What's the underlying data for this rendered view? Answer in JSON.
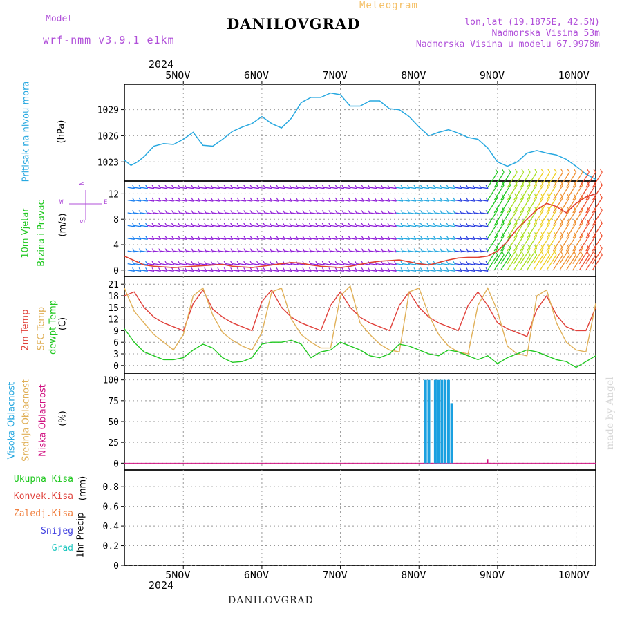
{
  "header": {
    "model_label": "Model",
    "model_name": "wrf-nmm_v3.9.1 e1km",
    "station": "DANILOVGRAD",
    "meteogram": "Meteogram",
    "lonlat": "lon,lat (19.1875E, 42.5N)",
    "elevation": "Nadmorska Visina 53m",
    "model_elevation": "Nadmorska Visina u modelu 67.9978m",
    "credit": "made by Angel",
    "footer_station": "DANILOVGRAD"
  },
  "time_axis": {
    "year": "2024",
    "labels": [
      "5NOV",
      "6NOV",
      "7NOV",
      "8NOV",
      "9NOV",
      "10NOV"
    ],
    "hours_start": -6,
    "hours_end": 138,
    "label_hours": [
      12,
      36,
      60,
      84,
      108,
      132
    ]
  },
  "chart_data": [
    {
      "type": "line",
      "name": "pressure",
      "ylabel": "Pritisak na nivou mora",
      "units": "(hPa)",
      "yticks": [
        1023,
        1026,
        1029
      ],
      "ylim": [
        1020.8,
        1031.9
      ],
      "color": "#27a8e0",
      "x": [
        -6,
        -4,
        -2,
        0,
        3,
        6,
        9,
        12,
        15,
        18,
        21,
        24,
        27,
        30,
        33,
        36,
        39,
        42,
        45,
        48,
        51,
        54,
        57,
        60,
        63,
        66,
        69,
        72,
        75,
        78,
        81,
        84,
        87,
        90,
        93,
        96,
        99,
        102,
        105,
        108,
        111,
        114,
        117,
        120,
        123,
        126,
        129,
        132,
        135,
        138
      ],
      "y": [
        1023.2,
        1022.6,
        1023.0,
        1023.6,
        1024.8,
        1025.1,
        1025.0,
        1025.6,
        1026.4,
        1024.9,
        1024.8,
        1025.6,
        1026.5,
        1027.0,
        1027.4,
        1028.2,
        1027.4,
        1026.9,
        1028.0,
        1029.8,
        1030.4,
        1030.4,
        1030.9,
        1030.7,
        1029.4,
        1029.4,
        1030.0,
        1030.0,
        1029.1,
        1029.0,
        1028.2,
        1027.0,
        1026.0,
        1026.4,
        1026.7,
        1026.3,
        1025.8,
        1025.6,
        1024.6,
        1023.0,
        1022.5,
        1023.0,
        1024.0,
        1024.3,
        1024.0,
        1023.8,
        1023.3,
        1022.5,
        1021.6,
        1021.0
      ]
    },
    {
      "type": "line",
      "name": "wind",
      "ylabel": "10m Vjetar",
      "ylabel2": "Brzina i Pravac",
      "units": "(m/s)",
      "compass": {
        "n": "N",
        "s": "S",
        "w": "W",
        "e": "E"
      },
      "yticks": [
        0,
        4,
        8,
        12
      ],
      "ylim": [
        -1,
        14
      ],
      "color": "#e04030",
      "x": [
        -6,
        -3,
        0,
        3,
        6,
        9,
        12,
        15,
        18,
        21,
        24,
        27,
        30,
        33,
        36,
        39,
        42,
        45,
        48,
        51,
        54,
        57,
        60,
        63,
        66,
        69,
        72,
        75,
        78,
        81,
        84,
        87,
        90,
        93,
        96,
        99,
        102,
        105,
        108,
        111,
        114,
        117,
        120,
        123,
        126,
        129,
        132,
        135,
        138
      ],
      "y": [
        2.2,
        1.5,
        0.8,
        0.6,
        0.5,
        0.4,
        0.5,
        0.6,
        0.7,
        0.8,
        0.9,
        0.6,
        0.5,
        0.4,
        0.6,
        0.8,
        1.0,
        1.2,
        1.1,
        0.8,
        0.6,
        0.5,
        0.4,
        0.6,
        0.9,
        1.2,
        1.4,
        1.5,
        1.6,
        1.3,
        1.0,
        0.8,
        1.2,
        1.6,
        1.9,
        2.0,
        2.0,
        2.2,
        3.0,
        4.5,
        6.5,
        8.0,
        9.5,
        10.5,
        10.0,
        9.0,
        10.5,
        11.5,
        12.0
      ]
    },
    {
      "type": "line",
      "name": "temperature",
      "ylabel": "2m Temp",
      "ylabel2": "SFC Temp",
      "ylabel3": "dewpt Temp",
      "units": "(C)",
      "yticks": [
        0,
        3,
        6,
        9,
        12,
        15,
        18,
        21
      ],
      "ylim": [
        -2,
        23
      ],
      "x": [
        -6,
        -3,
        0,
        3,
        6,
        9,
        12,
        15,
        18,
        21,
        24,
        27,
        30,
        33,
        36,
        39,
        42,
        45,
        48,
        51,
        54,
        57,
        60,
        63,
        66,
        69,
        72,
        75,
        78,
        81,
        84,
        87,
        90,
        93,
        96,
        99,
        102,
        105,
        108,
        111,
        114,
        117,
        120,
        123,
        126,
        129,
        132,
        135,
        138
      ],
      "series": [
        {
          "name": "2m Temp",
          "color": "#e0403a",
          "values": [
            18.0,
            19.0,
            15.0,
            12.5,
            11.0,
            10.0,
            9.0,
            16.0,
            19.5,
            14.5,
            12.5,
            11.0,
            10.0,
            9.0,
            16.5,
            19.5,
            15.0,
            12.5,
            11.0,
            10.0,
            9.0,
            15.5,
            19.0,
            15.0,
            12.5,
            11.0,
            10.0,
            9.0,
            15.5,
            19.0,
            15.0,
            12.5,
            11.0,
            10.0,
            9.0,
            15.5,
            19.0,
            15.5,
            11.0,
            9.5,
            8.5,
            7.5,
            14.5,
            18.0,
            13.0,
            10.0,
            9.0,
            9.0,
            15.0
          ]
        },
        {
          "name": "SFC Temp",
          "color": "#e0b058",
          "values": [
            20.0,
            14.0,
            11.0,
            8.0,
            6.0,
            4.0,
            8.0,
            18.0,
            20.0,
            13.0,
            8.5,
            6.5,
            5.0,
            4.0,
            8.5,
            19.0,
            20.0,
            12.0,
            8.0,
            6.0,
            4.5,
            4.5,
            18.0,
            20.5,
            11.0,
            8.0,
            5.5,
            4.0,
            3.5,
            19.0,
            20.0,
            13.0,
            8.0,
            5.0,
            3.5,
            3.0,
            15.5,
            20.0,
            14.0,
            5.0,
            3.0,
            2.5,
            18.0,
            19.5,
            11.0,
            6.0,
            4.0,
            3.5,
            16.0
          ]
        },
        {
          "name": "dewpt Temp",
          "color": "#20c820",
          "values": [
            9.5,
            6.0,
            3.5,
            2.5,
            1.5,
            1.5,
            2.0,
            4.0,
            5.5,
            4.5,
            2.0,
            0.8,
            1.0,
            2.0,
            5.5,
            6.0,
            6.0,
            6.5,
            5.5,
            2.0,
            3.5,
            4.0,
            6.0,
            5.0,
            4.0,
            2.5,
            2.0,
            3.0,
            5.5,
            5.0,
            4.0,
            3.0,
            2.5,
            4.0,
            3.5,
            2.5,
            1.5,
            2.5,
            0.5,
            2.0,
            3.0,
            4.0,
            3.5,
            2.5,
            1.5,
            1.0,
            -0.5,
            1.0,
            2.5
          ]
        }
      ]
    },
    {
      "type": "bar",
      "name": "cloud",
      "ylabel": "Visoka Oblacnost",
      "ylabel2": "Srednja Oblacnost",
      "ylabel3": "Niska Oblacnost",
      "units": "(%)",
      "yticks": [
        0,
        25,
        50,
        75,
        100
      ],
      "ylim": [
        -8,
        108
      ],
      "series": [
        {
          "name": "Visoka Oblacnost",
          "color": "#1aa0e0",
          "x": [
            86,
            87,
            89,
            90,
            91,
            92,
            93,
            94
          ],
          "values": [
            100,
            100,
            100,
            100,
            100,
            100,
            100,
            72
          ]
        },
        {
          "name": "Niska Oblacnost",
          "color": "#d01080",
          "x": [
            105
          ],
          "values": [
            5
          ]
        }
      ]
    },
    {
      "type": "bar",
      "name": "precip",
      "ylabel": "1hr Precip",
      "units": "(mm)",
      "legend": [
        "Ukupna Kisa",
        "Konvek.Kisa",
        "Zaledj.Kisa",
        "Snijeg",
        "Grad"
      ],
      "legend_colors": [
        "#20c820",
        "#e0403a",
        "#f08040",
        "#4040e0",
        "#20c8c0"
      ],
      "yticks": [
        0,
        0.2,
        0.4,
        0.6,
        0.8
      ],
      "ylim": [
        0,
        0.97
      ],
      "values": []
    }
  ]
}
